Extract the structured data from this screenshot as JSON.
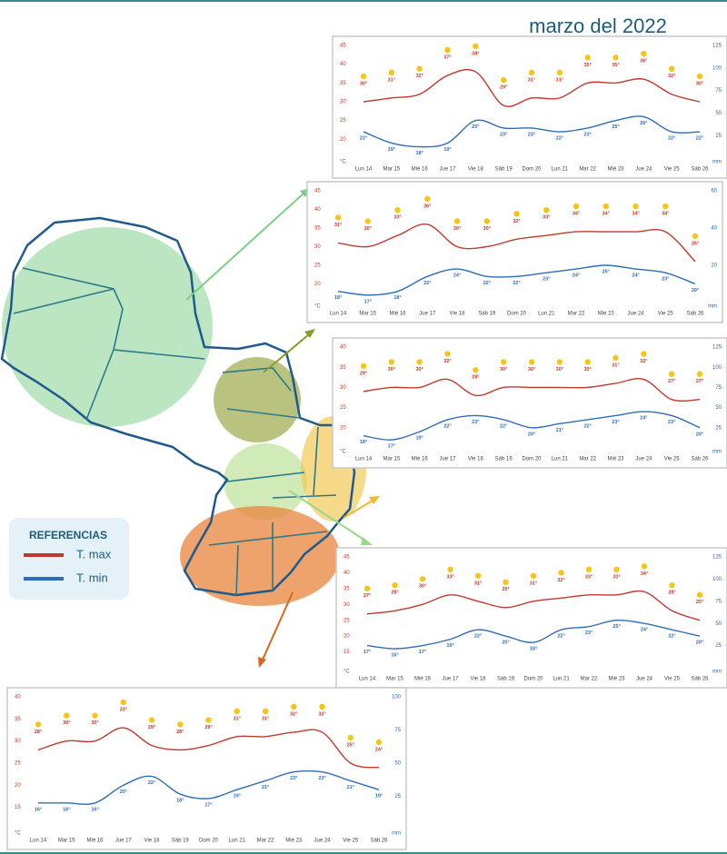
{
  "title": "marzo del 2022",
  "legend_title": "REFERENCIAS",
  "chart_data": [
    {
      "type": "line",
      "categories": [
        "Lun 14",
        "Mar 15",
        "Mié 16",
        "Jue 17",
        "Vie 18",
        "Sáb 19",
        "Dom 20",
        "Lun 21",
        "Mar 22",
        "Mié 23",
        "Jue 24",
        "Vie 25",
        "Sáb 26"
      ],
      "ylim": [
        15,
        45
      ],
      "yticks": [
        20,
        25,
        30,
        35,
        40,
        45
      ],
      "y_unit": "°C",
      "y2lim": [
        0,
        125
      ],
      "y2ticks": [
        25,
        50,
        75,
        100,
        125
      ],
      "y2_unit": "mm",
      "series": [
        {
          "name": "T. max",
          "color": "#c0392b",
          "values": [
            30,
            31,
            32,
            37,
            38,
            29,
            31,
            31,
            35,
            35,
            36,
            32,
            30
          ],
          "value_labels": [
            "30°",
            "31°",
            "32°",
            "37°",
            "38°",
            "29°",
            "31°",
            "31°",
            "35°",
            "35°",
            "36°",
            "32°",
            "30°"
          ]
        },
        {
          "name": "T. min",
          "color": "#2e6db4",
          "values": [
            22,
            19,
            18,
            19,
            25,
            23,
            23,
            22,
            23,
            25,
            26,
            22,
            22
          ],
          "value_labels": [
            "22°",
            "19°",
            "18°",
            "19°",
            "25°",
            "23°",
            "23°",
            "22°",
            "23°",
            "25°",
            "26°",
            "22°",
            "22°"
          ]
        }
      ]
    },
    {
      "type": "line",
      "categories": [
        "Lun 14",
        "Mar 15",
        "Mié 16",
        "Jue 17",
        "Vie 18",
        "Sáb 19",
        "Dom 20",
        "Lun 21",
        "Mar 22",
        "Mié 23",
        "Jue 24",
        "Vie 25",
        "Sáb 26"
      ],
      "ylim": [
        15,
        45
      ],
      "yticks": [
        20,
        25,
        30,
        35,
        40,
        45
      ],
      "y_unit": "°C",
      "y2lim": [
        0,
        60
      ],
      "y2ticks": [
        20,
        40,
        60
      ],
      "y2_unit": "mm",
      "series": [
        {
          "color": "#c0392b",
          "values": [
            31,
            30,
            33,
            36,
            30,
            30,
            32,
            33,
            34,
            34,
            34,
            34,
            26
          ],
          "value_labels": [
            "31°",
            "30°",
            "33°",
            "36°",
            "30°",
            "30°",
            "32°",
            "33°",
            "34°",
            "34°",
            "34°",
            "34°",
            "26°"
          ]
        },
        {
          "color": "#2e6db4",
          "values": [
            18,
            17,
            18,
            22,
            24,
            22,
            22,
            23,
            24,
            25,
            24,
            23,
            20
          ],
          "value_labels": [
            "18°",
            "17°",
            "18°",
            "22°",
            "24°",
            "22°",
            "22°",
            "23°",
            "24°",
            "25°",
            "24°",
            "23°",
            "20°"
          ]
        }
      ]
    },
    {
      "type": "line",
      "categories": [
        "Lun 14",
        "Mar 15",
        "Mié 16",
        "Jue 17",
        "Vie 18",
        "Sáb 19",
        "Dom 20",
        "Lun 21",
        "Mar 22",
        "Mié 23",
        "Jue 24",
        "Vie 25",
        "Sáb 26"
      ],
      "ylim": [
        15,
        40
      ],
      "yticks": [
        20,
        25,
        30,
        35,
        40
      ],
      "y_unit": "°C",
      "y2lim": [
        0,
        125
      ],
      "y2ticks": [
        25,
        50,
        75,
        100,
        125
      ],
      "y2_unit": "mm",
      "series": [
        {
          "color": "#c0392b",
          "values": [
            29,
            30,
            30,
            32,
            28,
            30,
            30,
            30,
            30,
            31,
            32,
            27,
            27
          ],
          "value_labels": [
            "29°",
            "30°",
            "30°",
            "32°",
            "28°",
            "30°",
            "30°",
            "30°",
            "30°",
            "31°",
            "32°",
            "27°",
            "27°"
          ]
        },
        {
          "color": "#2e6db4",
          "values": [
            18,
            17,
            19,
            22,
            23,
            22,
            20,
            21,
            22,
            23,
            24,
            23,
            20
          ],
          "value_labels": [
            "18°",
            "17°",
            "19°",
            "22°",
            "23°",
            "22°",
            "20°",
            "21°",
            "22°",
            "23°",
            "24°",
            "23°",
            "20°"
          ]
        }
      ]
    },
    {
      "type": "line",
      "categories": [
        "Lun 14",
        "Mar 15",
        "Mié 16",
        "Jue 17",
        "Vie 18",
        "Sáb 19",
        "Dom 20",
        "Lun 21",
        "Mar 22",
        "Mié 23",
        "Jue 24",
        "Vie 25",
        "Sáb 26"
      ],
      "ylim": [
        10,
        45
      ],
      "yticks": [
        15,
        20,
        25,
        30,
        35,
        40,
        45
      ],
      "y_unit": "°C",
      "y2lim": [
        0,
        125
      ],
      "y2ticks": [
        25,
        50,
        75,
        100,
        125
      ],
      "y2_unit": "mm",
      "series": [
        {
          "color": "#c0392b",
          "values": [
            27,
            28,
            30,
            33,
            31,
            29,
            31,
            32,
            33,
            33,
            34,
            28,
            25
          ],
          "value_labels": [
            "27°",
            "28°",
            "30°",
            "33°",
            "31°",
            "29°",
            "31°",
            "32°",
            "33°",
            "33°",
            "34°",
            "28°",
            "25°"
          ]
        },
        {
          "color": "#2e6db4",
          "values": [
            17,
            16,
            17,
            19,
            22,
            20,
            18,
            22,
            23,
            25,
            24,
            22,
            20
          ],
          "value_labels": [
            "17°",
            "16°",
            "17°",
            "19°",
            "22°",
            "20°",
            "18°",
            "22°",
            "23°",
            "25°",
            "24°",
            "22°",
            "20°"
          ]
        }
      ]
    },
    {
      "type": "line",
      "categories": [
        "Lun 14",
        "Mar 15",
        "Mié 16",
        "Jue 17",
        "Vie 18",
        "Sáb 19",
        "Dom 20",
        "Lun 21",
        "Mar 22",
        "Mié 23",
        "Jue 24",
        "Vie 25",
        "Sáb 26"
      ],
      "ylim": [
        10,
        40
      ],
      "yticks": [
        15,
        20,
        25,
        30,
        35,
        40
      ],
      "y_unit": "°C",
      "y2lim": [
        0,
        100
      ],
      "y2ticks": [
        25,
        50,
        75,
        100
      ],
      "y2_unit": "mm",
      "series": [
        {
          "color": "#c0392b",
          "values": [
            28,
            30,
            30,
            33,
            29,
            28,
            29,
            31,
            31,
            32,
            32,
            25,
            24
          ],
          "value_labels": [
            "28°",
            "30°",
            "30°",
            "33°",
            "29°",
            "28°",
            "29°",
            "31°",
            "31°",
            "32°",
            "32°",
            "25°",
            "24°"
          ]
        },
        {
          "color": "#2e6db4",
          "values": [
            16,
            16,
            16,
            20,
            22,
            18,
            17,
            19,
            21,
            23,
            23,
            21,
            19
          ],
          "value_labels": [
            "16°",
            "16°",
            "16°",
            "20°",
            "22°",
            "18°",
            "17°",
            "19°",
            "21°",
            "23°",
            "23°",
            "21°",
            "19°"
          ]
        }
      ]
    }
  ]
}
